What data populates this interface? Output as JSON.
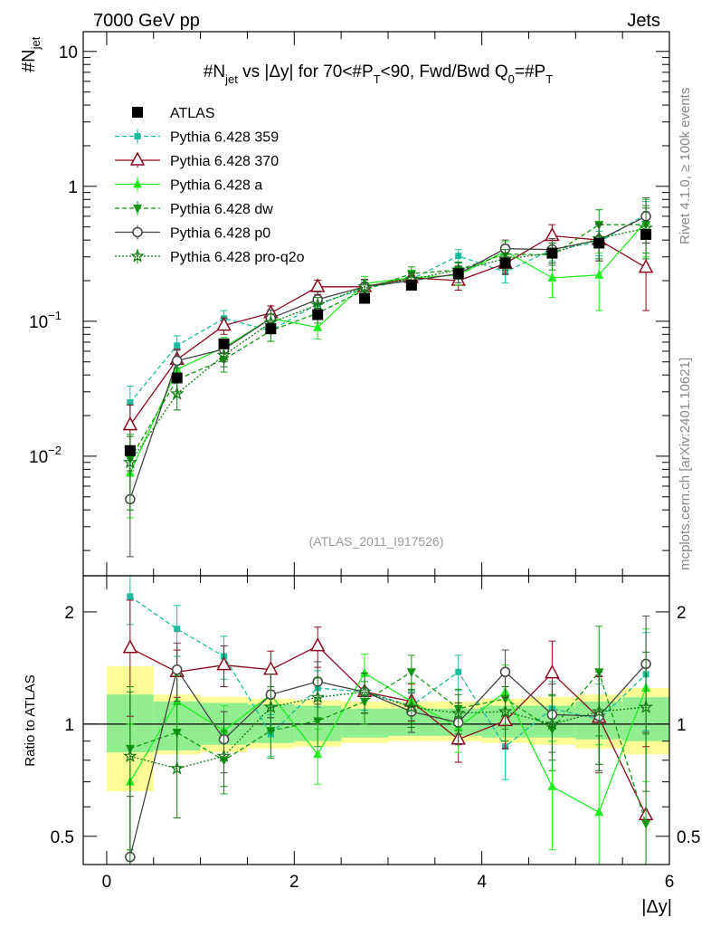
{
  "header": {
    "left": "7000 GeV pp",
    "right": "Jets"
  },
  "side_labels": {
    "rivet": "Rivet 4.1.0, ≥ 100k events",
    "mcplots": "mcplots.cern.ch [arXiv:2401.10621]"
  },
  "chart_data": [
    {
      "type": "line",
      "panel": "main",
      "title": "#N_jet vs |Δy| for 70<#P_T<90, Fwd/Bwd Q0=#P_T",
      "title_parts": {
        "a": "#N",
        "a_sub": "jet",
        "b": " vs |Δy| for 70<#",
        "c": "P",
        "c_sub": "T",
        "d": "<90, Fwd/Bwd Q",
        "d_sub": "0",
        "e": "=#",
        "f": "P",
        "f_sub": "T"
      },
      "ylabel": "#N_jet",
      "ylabel_parts": {
        "main": "#N",
        "sub": "jet"
      },
      "yscale": "log",
      "ylim": [
        0.0013,
        14
      ],
      "xlim": [
        -0.25,
        6.0
      ],
      "y_ticks": [
        {
          "value": 0.01,
          "label": "10",
          "exp": "−2"
        },
        {
          "value": 0.1,
          "label": "10",
          "exp": "−1"
        },
        {
          "value": 1,
          "label": "1",
          "exp": ""
        },
        {
          "value": 10,
          "label": "10",
          "exp": ""
        }
      ],
      "watermark": "(ATLAS_2011_I917526)",
      "x": [
        0.25,
        0.75,
        1.25,
        1.75,
        2.25,
        2.75,
        3.25,
        3.75,
        4.25,
        4.75,
        5.25,
        5.75
      ],
      "series": [
        {
          "name": "ATLAS",
          "color": "#000000",
          "marker": "square",
          "dash": "none",
          "values": [
            0.011,
            0.038,
            0.068,
            0.088,
            0.112,
            0.148,
            0.185,
            0.225,
            0.27,
            0.32,
            0.38,
            0.44
          ]
        },
        {
          "name": "Pythia 6.428 359",
          "color": "#1abc9c",
          "marker": "smallsquare",
          "dash": "5,3",
          "values": [
            0.025,
            0.066,
            0.105,
            0.085,
            0.135,
            0.175,
            0.205,
            0.305,
            0.232,
            0.34,
            0.385,
            0.62
          ],
          "errors": [
            0.008,
            0.012,
            0.015,
            0.014,
            0.018,
            0.02,
            0.022,
            0.035,
            0.04,
            0.06,
            0.08,
            0.15
          ]
        },
        {
          "name": "Pythia 6.428 370",
          "color": "#8b0a1e",
          "marker": "triangle-open",
          "dash": "none",
          "values": [
            0.017,
            0.052,
            0.093,
            0.115,
            0.18,
            0.18,
            0.21,
            0.2,
            0.268,
            0.43,
            0.4,
            0.25
          ],
          "errors": [
            0.007,
            0.01,
            0.013,
            0.015,
            0.022,
            0.024,
            0.026,
            0.03,
            0.045,
            0.09,
            0.12,
            0.13
          ]
        },
        {
          "name": "Pythia 6.428 a",
          "color": "#22ee22",
          "marker": "triangle",
          "dash": "none",
          "values": [
            0.0075,
            0.044,
            0.064,
            0.105,
            0.09,
            0.19,
            0.21,
            0.22,
            0.33,
            0.21,
            0.22,
            0.55
          ],
          "errors": [
            0.004,
            0.009,
            0.012,
            0.016,
            0.016,
            0.025,
            0.028,
            0.035,
            0.06,
            0.06,
            0.1,
            0.25
          ]
        },
        {
          "name": "Pythia 6.428 dw",
          "color": "#119911",
          "marker": "triangle-down",
          "dash": "5,3",
          "values": [
            0.0095,
            0.037,
            0.052,
            0.085,
            0.115,
            0.17,
            0.225,
            0.24,
            0.315,
            0.31,
            0.52,
            0.52
          ],
          "errors": [
            0.005,
            0.008,
            0.01,
            0.014,
            0.018,
            0.022,
            0.028,
            0.035,
            0.055,
            0.07,
            0.15,
            0.2
          ]
        },
        {
          "name": "Pythia 6.428 p0",
          "color": "#444444",
          "marker": "circle-open",
          "dash": "none",
          "values": [
            0.0048,
            0.051,
            0.062,
            0.105,
            0.145,
            0.18,
            0.2,
            0.225,
            0.345,
            0.34,
            0.4,
            0.6
          ],
          "errors": [
            0.003,
            0.01,
            0.012,
            0.016,
            0.02,
            0.024,
            0.026,
            0.032,
            0.055,
            0.07,
            0.12,
            0.22
          ]
        },
        {
          "name": "Pythia 6.428 pro-q2o",
          "color": "#117711",
          "marker": "star",
          "dash": "2,2",
          "values": [
            0.009,
            0.029,
            0.056,
            0.098,
            0.132,
            0.18,
            0.205,
            0.24,
            0.29,
            0.32,
            0.41,
            0.49
          ],
          "errors": [
            0.005,
            0.007,
            0.01,
            0.015,
            0.018,
            0.022,
            0.026,
            0.032,
            0.05,
            0.06,
            0.12,
            0.2
          ]
        }
      ]
    },
    {
      "type": "line",
      "panel": "ratio",
      "xlabel": "|Δy|",
      "ylabel": "Ratio to ATLAS",
      "yscale": "log",
      "ylim": [
        0.42,
        2.5
      ],
      "xlim": [
        -0.25,
        6.0
      ],
      "x_ticks": [
        0,
        2,
        4,
        6
      ],
      "y_ticks": [
        0.5,
        1,
        2
      ],
      "reference": 1,
      "band_edges": [
        0,
        0.5,
        1.0,
        1.5,
        2.0,
        2.5,
        3.0,
        3.5,
        4.0,
        4.5,
        5.0,
        5.5,
        6.0
      ],
      "band_green": [
        [
          0.84,
          1.2
        ],
        [
          0.85,
          1.15
        ],
        [
          0.88,
          1.14
        ],
        [
          0.89,
          1.13
        ],
        [
          0.9,
          1.12
        ],
        [
          0.92,
          1.1
        ],
        [
          0.93,
          1.1
        ],
        [
          0.93,
          1.1
        ],
        [
          0.92,
          1.12
        ],
        [
          0.92,
          1.12
        ],
        [
          0.91,
          1.15
        ],
        [
          0.9,
          1.18
        ]
      ],
      "band_yellow": [
        [
          0.66,
          1.43
        ],
        [
          0.83,
          1.2
        ],
        [
          0.84,
          1.18
        ],
        [
          0.86,
          1.17
        ],
        [
          0.87,
          1.16
        ],
        [
          0.89,
          1.15
        ],
        [
          0.9,
          1.15
        ],
        [
          0.9,
          1.15
        ],
        [
          0.89,
          1.17
        ],
        [
          0.88,
          1.18
        ],
        [
          0.86,
          1.2
        ],
        [
          0.83,
          1.25
        ]
      ],
      "series": [
        {
          "name": "Pythia 6.428 359",
          "values": [
            2.2,
            1.8,
            1.52,
            0.94,
            1.25,
            1.22,
            1.12,
            1.38,
            0.87,
            1.1,
            1.03,
            1.36
          ],
          "errors": [
            0.35,
            0.28,
            0.2,
            0.12,
            0.14,
            0.13,
            0.1,
            0.15,
            0.16,
            0.2,
            0.25,
            0.4
          ]
        },
        {
          "name": "Pythia 6.428 370",
          "values": [
            1.6,
            1.38,
            1.44,
            1.4,
            1.62,
            1.22,
            1.15,
            0.91,
            1.02,
            1.37,
            1.04,
            0.57
          ],
          "errors": [
            0.55,
            0.2,
            0.18,
            0.17,
            0.2,
            0.15,
            0.13,
            0.12,
            0.16,
            0.3,
            0.3,
            0.3
          ]
        },
        {
          "name": "Pythia 6.428 a",
          "values": [
            0.7,
            1.15,
            0.96,
            1.2,
            0.83,
            1.37,
            1.15,
            0.98,
            1.22,
            0.68,
            0.58,
            1.25
          ],
          "errors": [
            0.3,
            0.2,
            0.16,
            0.16,
            0.14,
            0.17,
            0.14,
            0.14,
            0.22,
            0.22,
            0.3,
            0.55
          ]
        },
        {
          "name": "Pythia 6.428 dw",
          "values": [
            0.86,
            0.95,
            0.8,
            0.96,
            1.02,
            1.15,
            1.38,
            1.1,
            1.17,
            0.97,
            1.38,
            0.54
          ],
          "errors": [
            0.4,
            0.18,
            0.15,
            0.15,
            0.15,
            0.15,
            0.15,
            0.14,
            0.2,
            0.22,
            0.45,
            0.4
          ]
        },
        {
          "name": "Pythia 6.428 p0",
          "values": [
            0.44,
            1.4,
            0.91,
            1.2,
            1.3,
            1.22,
            1.08,
            1.01,
            1.38,
            1.06,
            1.05,
            1.45
          ],
          "errors": [
            0.2,
            0.25,
            0.17,
            0.16,
            0.17,
            0.15,
            0.13,
            0.13,
            0.2,
            0.22,
            0.3,
            0.5
          ]
        },
        {
          "name": "Pythia 6.428 pro-q2o",
          "values": [
            0.82,
            0.76,
            0.82,
            1.11,
            1.18,
            1.22,
            1.11,
            1.07,
            1.08,
            1.0,
            1.08,
            1.11
          ],
          "errors": [
            0.4,
            0.2,
            0.14,
            0.15,
            0.15,
            0.15,
            0.13,
            0.13,
            0.18,
            0.2,
            0.3,
            0.45
          ]
        }
      ]
    }
  ]
}
